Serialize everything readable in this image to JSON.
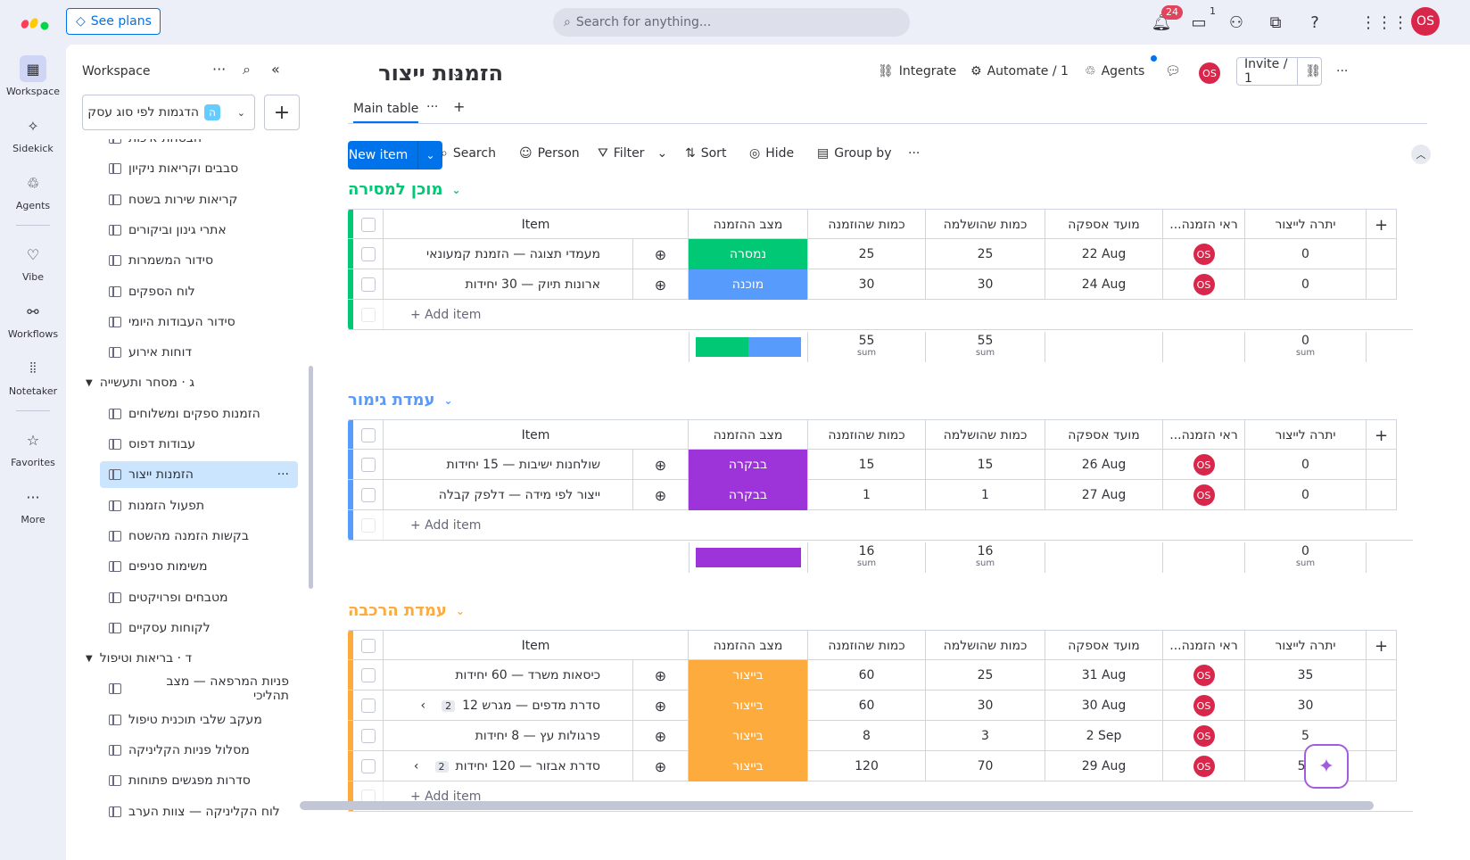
{
  "topbar": {
    "see_plans": "See plans",
    "search_placeholder": "Search for anything...",
    "notif_count": "24",
    "inbox_count": "1",
    "avatar": "OS"
  },
  "rail": [
    {
      "label": "Workspace",
      "icon": "grid-icon"
    },
    {
      "label": "Sidekick",
      "icon": "sparkle-icon"
    },
    {
      "label": "Agents",
      "icon": "agent-icon"
    },
    {
      "label": "Vibe",
      "icon": "heart-icon"
    },
    {
      "label": "Workflows",
      "icon": "workflow-icon"
    },
    {
      "label": "Notetaker",
      "icon": "waveform-icon"
    },
    {
      "label": "Favorites",
      "icon": "star-icon"
    },
    {
      "label": "More",
      "icon": "more-icon"
    }
  ],
  "sidebar": {
    "title": "Workspace",
    "workspace_name": "הדגמות לפי סוג עסק",
    "workspace_badge": "ה",
    "nav": [
      {
        "type": "item",
        "label": "הבטחת איכות"
      },
      {
        "type": "item",
        "label": "סבבים וקריאות ניקיון"
      },
      {
        "type": "item",
        "label": "קריאות שירות בשטח"
      },
      {
        "type": "item",
        "label": "אתרי גינון וביקורים"
      },
      {
        "type": "item",
        "label": "סידור המשמרות"
      },
      {
        "type": "item",
        "label": "לוח הספקים"
      },
      {
        "type": "item",
        "label": "סידור העבודות היומי"
      },
      {
        "type": "item",
        "label": "דוחות אירוע"
      },
      {
        "type": "group",
        "label": "ג · מסחר ותעשייה"
      },
      {
        "type": "item",
        "label": "הזמנות ספקים ומשלוחים"
      },
      {
        "type": "item",
        "label": "עבודות דפוס"
      },
      {
        "type": "item",
        "label": "הזמנות ייצור",
        "active": true
      },
      {
        "type": "item",
        "label": "תפעול הזמנות"
      },
      {
        "type": "item",
        "label": "בקשות הזמנה מהשטח"
      },
      {
        "type": "item",
        "label": "משימות סניפים"
      },
      {
        "type": "item",
        "label": "מטבחים ופרויקטים"
      },
      {
        "type": "item",
        "label": "לקוחות עסקיים"
      },
      {
        "type": "group",
        "label": "ד · בריאות וטיפול"
      },
      {
        "type": "item",
        "label": "פניות המרפאה — מצב תהליכי"
      },
      {
        "type": "item",
        "label": "מעקב שלבי תוכנית טיפול"
      },
      {
        "type": "item",
        "label": "מסלול פניות הקליניקה"
      },
      {
        "type": "item",
        "label": "סדרות מפגשים פתוחות"
      },
      {
        "type": "item",
        "label": "לוח הקליניקה — צוות הערב"
      }
    ]
  },
  "board": {
    "title": "הזמנות ייצור",
    "integrate": "Integrate",
    "automate": "Automate / 1",
    "agents": "Agents",
    "invite": "Invite / 1",
    "avatar": "OS",
    "tab": "Main table",
    "new_item": "New item",
    "toolbar": {
      "search": "Search",
      "person": "Person",
      "filter": "Filter",
      "sort": "Sort",
      "hide": "Hide",
      "group_by": "Group by"
    }
  },
  "columns": {
    "item": "Item",
    "status": "מצב ההזמנה",
    "ordered": "כמות שהוזמנה",
    "completed": "כמות שהושלמה",
    "due": "מועד אספקה",
    "owner": "...ראי הזמנה",
    "remaining": "יתרה לייצור",
    "sum_label": "sum",
    "add_item": "+ Add item"
  },
  "groups": [
    {
      "name": "מוכן למסירה",
      "color": "#00c875",
      "rows": [
        {
          "item": "מעמדי תצוגה — הזמנת קמעונאי",
          "status": "נמסרה",
          "status_color": "#00c875",
          "ordered": "25",
          "completed": "25",
          "due": "22 Aug",
          "owner": "OS",
          "remaining": "0"
        },
        {
          "item": "ארונות תיוק — 30 יחידות",
          "status": "מוכנה",
          "status_color": "#579bfc",
          "ordered": "30",
          "completed": "30",
          "due": "24 Aug",
          "owner": "OS",
          "remaining": "0"
        }
      ],
      "sum": {
        "ordered": "55",
        "completed": "55",
        "remaining": "0"
      },
      "summary_bar": [
        {
          "color": "#00c875",
          "fraction": 0.5
        },
        {
          "color": "#579bfc",
          "fraction": 0.5
        }
      ]
    },
    {
      "name": "עמדת גימור",
      "color": "#579bfc",
      "rows": [
        {
          "item": "שולחנות ישיבות — 15 יחידות",
          "status": "בבקרה",
          "status_color": "#9d34da",
          "ordered": "15",
          "completed": "15",
          "due": "26 Aug",
          "owner": "OS",
          "remaining": "0"
        },
        {
          "item": "ייצור לפי מידה — דלפק קבלה",
          "status": "בבקרה",
          "status_color": "#9d34da",
          "ordered": "1",
          "completed": "1",
          "due": "27 Aug",
          "owner": "OS",
          "remaining": "0"
        }
      ],
      "sum": {
        "ordered": "16",
        "completed": "16",
        "remaining": "0"
      },
      "summary_bar": [
        {
          "color": "#9d34da",
          "fraction": 1
        }
      ]
    },
    {
      "name": "עמדת הרכבה",
      "color": "#fdab3d",
      "rows": [
        {
          "item": "כיסאות משרד — 60 יחידות",
          "status": "בייצור",
          "status_color": "#fdab3d",
          "ordered": "60",
          "completed": "25",
          "due": "31 Aug",
          "owner": "OS",
          "remaining": "35"
        },
        {
          "item": "סדרת מדפים — מגרש 12",
          "subitems": "2",
          "status": "בייצור",
          "status_color": "#fdab3d",
          "ordered": "60",
          "completed": "30",
          "due": "30 Aug",
          "owner": "OS",
          "remaining": "30"
        },
        {
          "item": "פרגולות עץ — 8 יחידות",
          "status": "בייצור",
          "status_color": "#fdab3d",
          "ordered": "8",
          "completed": "3",
          "due": "2 Sep",
          "owner": "OS",
          "remaining": "5"
        },
        {
          "item": "סדרת אבזור — 120 יחידות",
          "subitems": "2",
          "status": "בייצור",
          "status_color": "#fdab3d",
          "ordered": "120",
          "completed": "70",
          "due": "29 Aug",
          "owner": "OS",
          "remaining": "50"
        }
      ]
    }
  ]
}
